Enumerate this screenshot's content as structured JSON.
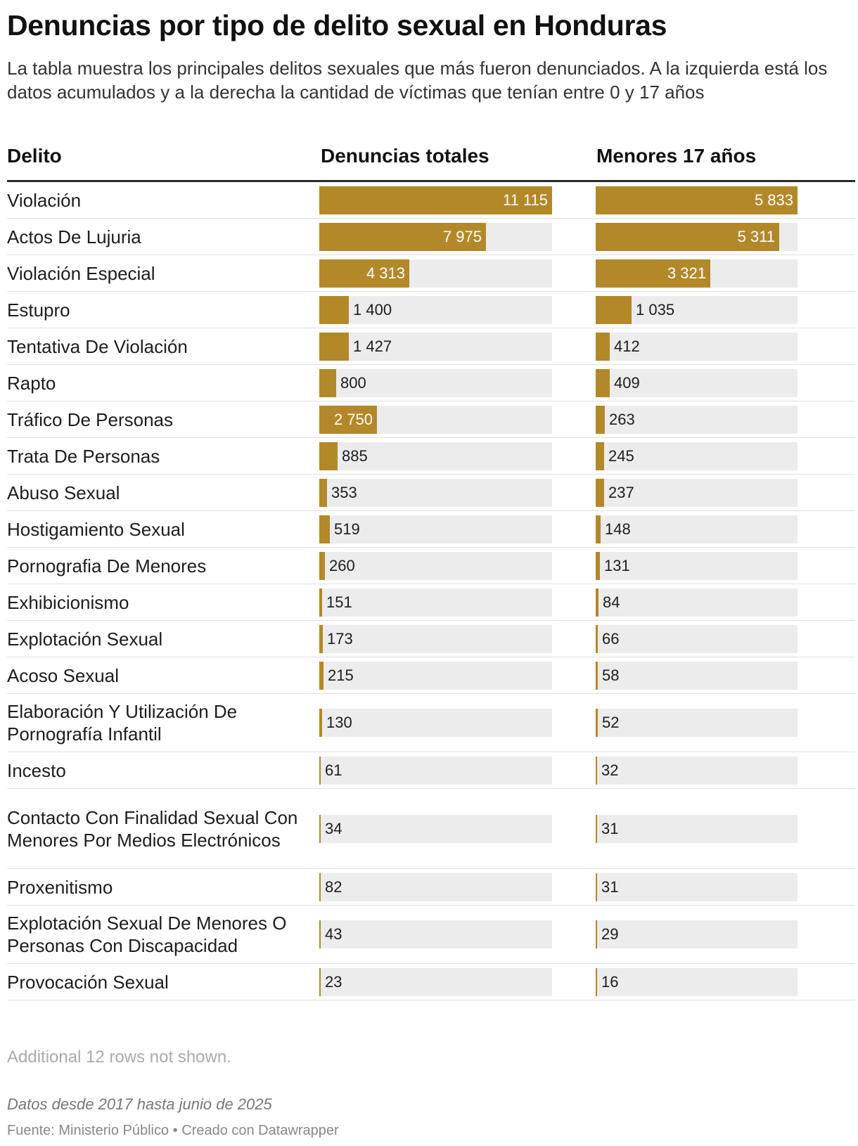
{
  "title": "Denuncias por tipo de delito sexual en Honduras",
  "subtitle": "La tabla muestra los principales delitos sexuales que más fueron denunciados. A la izquierda está los datos acumulados y a la derecha la cantidad de víctimas que tenían entre 0 y 17 años",
  "headers": {
    "delito": "Delito",
    "totales": "Denuncias totales",
    "menores": "Menores 17 años"
  },
  "note": "Additional 12 rows not shown.",
  "footnote": "Datos desde 2017 hasta junio de 2025",
  "source": "Fuente: Ministerio Público • Creado con Datawrapper",
  "colors": {
    "bar": "#b38829",
    "track": "#ececec"
  },
  "chart_data": {
    "type": "table",
    "columns": [
      "Delito",
      "Denuncias totales",
      "Menores 17 años"
    ],
    "max_totales": 11115,
    "max_menores": 5833,
    "rows": [
      {
        "delito": "Violación",
        "totales": 11115,
        "totales_label": "11 115",
        "menores": 5833,
        "menores_label": "5 833"
      },
      {
        "delito": "Actos De Lujuria",
        "totales": 7975,
        "totales_label": "7 975",
        "menores": 5311,
        "menores_label": "5 311"
      },
      {
        "delito": "Violación Especial",
        "totales": 4313,
        "totales_label": "4 313",
        "menores": 3321,
        "menores_label": "3 321"
      },
      {
        "delito": "Estupro",
        "totales": 1400,
        "totales_label": "1 400",
        "menores": 1035,
        "menores_label": "1 035"
      },
      {
        "delito": "Tentativa De Violación",
        "totales": 1427,
        "totales_label": "1 427",
        "menores": 412,
        "menores_label": "412"
      },
      {
        "delito": "Rapto",
        "totales": 800,
        "totales_label": "800",
        "menores": 409,
        "menores_label": "409"
      },
      {
        "delito": "Tráfico De Personas",
        "totales": 2750,
        "totales_label": "2 750",
        "menores": 263,
        "menores_label": "263"
      },
      {
        "delito": "Trata De Personas",
        "totales": 885,
        "totales_label": "885",
        "menores": 245,
        "menores_label": "245"
      },
      {
        "delito": "Abuso Sexual",
        "totales": 353,
        "totales_label": "353",
        "menores": 237,
        "menores_label": "237"
      },
      {
        "delito": "Hostigamiento Sexual",
        "totales": 519,
        "totales_label": "519",
        "menores": 148,
        "menores_label": "148"
      },
      {
        "delito": "Pornografia De Menores",
        "totales": 260,
        "totales_label": "260",
        "menores": 131,
        "menores_label": "131"
      },
      {
        "delito": "Exhibicionismo",
        "totales": 151,
        "totales_label": "151",
        "menores": 84,
        "menores_label": "84"
      },
      {
        "delito": "Explotación Sexual",
        "totales": 173,
        "totales_label": "173",
        "menores": 66,
        "menores_label": "66"
      },
      {
        "delito": "Acoso Sexual",
        "totales": 215,
        "totales_label": "215",
        "menores": 58,
        "menores_label": "58"
      },
      {
        "delito": "Elaboración Y Utilización De Pornografía Infantil",
        "totales": 130,
        "totales_label": "130",
        "menores": 52,
        "menores_label": "52"
      },
      {
        "delito": "Incesto",
        "totales": 61,
        "totales_label": "61",
        "menores": 32,
        "menores_label": "32"
      },
      {
        "delito": "Contacto Con Finalidad Sexual Con Menores Por Medios Electrónicos",
        "totales": 34,
        "totales_label": "34",
        "menores": 31,
        "menores_label": "31"
      },
      {
        "delito": "Proxenitismo",
        "totales": 82,
        "totales_label": "82",
        "menores": 31,
        "menores_label": "31"
      },
      {
        "delito": "Explotación Sexual De Menores O Personas Con Discapacidad",
        "totales": 43,
        "totales_label": "43",
        "menores": 29,
        "menores_label": "29"
      },
      {
        "delito": "Provocación Sexual",
        "totales": 23,
        "totales_label": "23",
        "menores": 16,
        "menores_label": "16"
      }
    ]
  }
}
